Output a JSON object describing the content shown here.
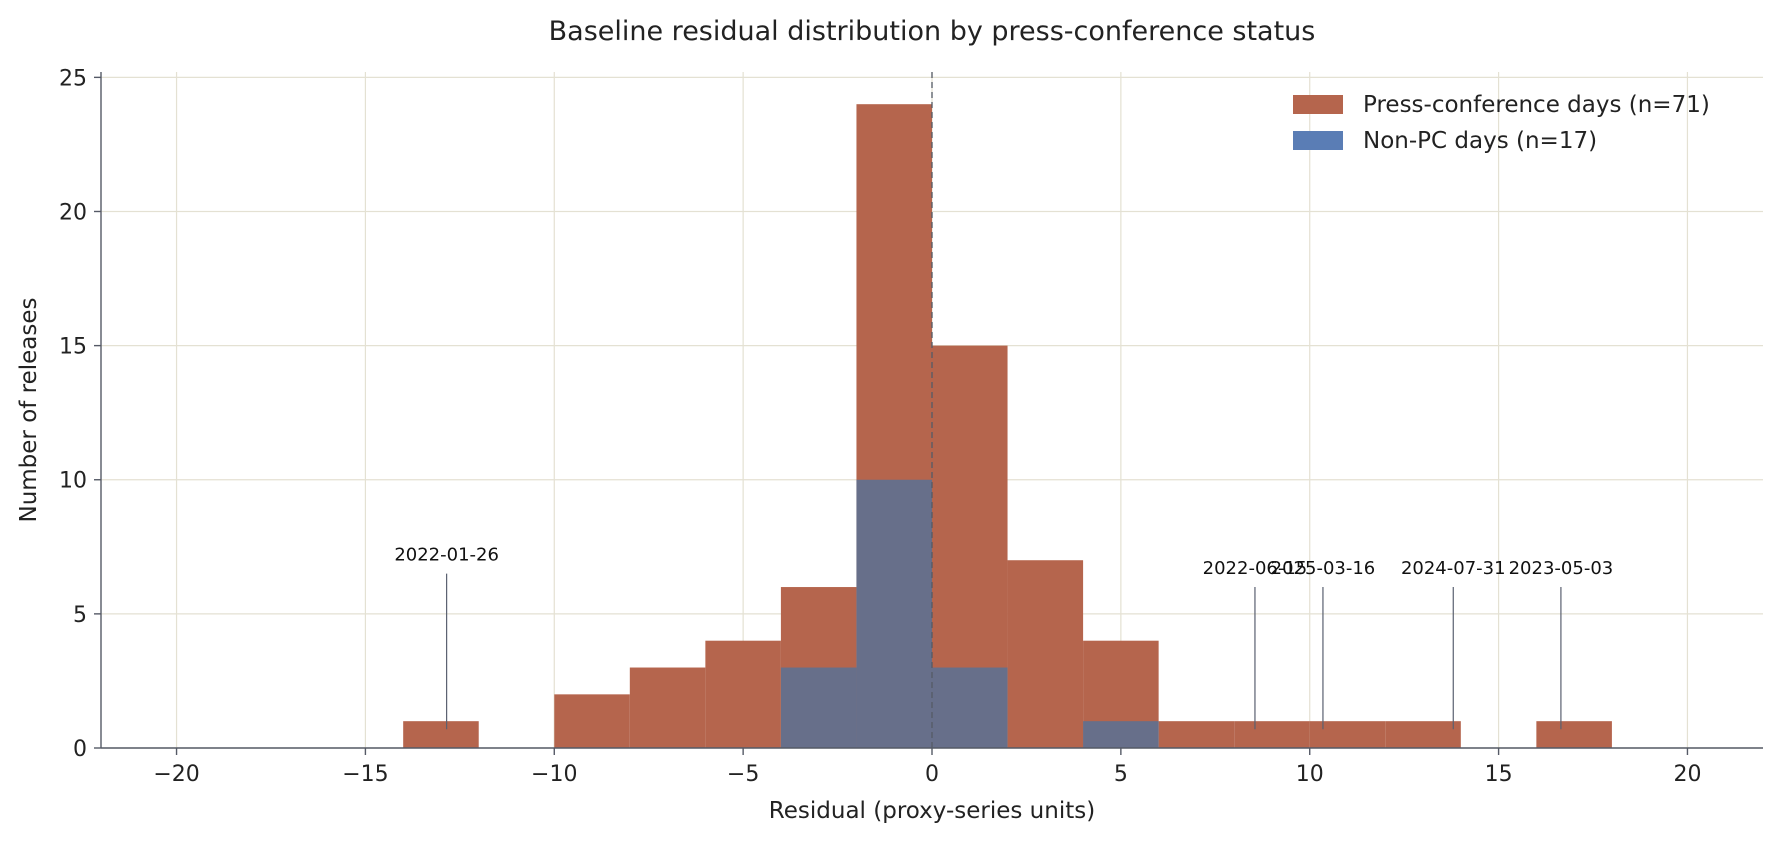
{
  "chart_data": {
    "type": "bar",
    "title": "Baseline residual distribution by press-conference status",
    "xlabel": "Residual (proxy-series units)",
    "ylabel": "Number of releases",
    "xlim": [
      -22,
      22
    ],
    "ylim": [
      0,
      25.2
    ],
    "xticks": [
      -20,
      -15,
      -10,
      -5,
      0,
      5,
      10,
      15,
      20
    ],
    "xtick_labels": [
      "−20",
      "−15",
      "−10",
      "−5",
      "0",
      "5",
      "10",
      "15",
      "20"
    ],
    "yticks": [
      0,
      5,
      10,
      15,
      20,
      25
    ],
    "ytick_labels": [
      "0",
      "5",
      "10",
      "15",
      "20",
      "25"
    ],
    "grid": true,
    "legend_position": "top-right",
    "bin_edges": [
      -14,
      -12,
      -10,
      -8,
      -6,
      -4,
      -2,
      0,
      2,
      4,
      6,
      8,
      10,
      12,
      14,
      16,
      18
    ],
    "series": [
      {
        "name": "Press-conference days (n=71)",
        "color": "#b5654d",
        "values": [
          1,
          0,
          2,
          3,
          4,
          6,
          24,
          15,
          7,
          4,
          1,
          1,
          1,
          1,
          0,
          1
        ]
      },
      {
        "name": "Non-PC days (n=17)",
        "color": "#5a7db5",
        "values": [
          0,
          0,
          0,
          0,
          0,
          3,
          10,
          3,
          0,
          1,
          0,
          0,
          0,
          0,
          0,
          0
        ]
      }
    ],
    "overlap_color": "#676f8a",
    "reference_line_x": 0,
    "annotations": [
      {
        "label": "2022-01-26",
        "x": -12.85,
        "y_top": 6.5,
        "y_bottom": 0.7
      },
      {
        "label": "2022-06-15",
        "x": 8.55,
        "y_top": 6.0,
        "y_bottom": 0.7
      },
      {
        "label": "2025-03-16",
        "x": 10.35,
        "y_top": 6.0,
        "y_bottom": 0.7
      },
      {
        "label": "2024-07-31",
        "x": 13.8,
        "y_top": 6.0,
        "y_bottom": 0.7
      },
      {
        "label": "2023-05-03",
        "x": 16.65,
        "y_top": 6.0,
        "y_bottom": 0.7
      }
    ]
  }
}
